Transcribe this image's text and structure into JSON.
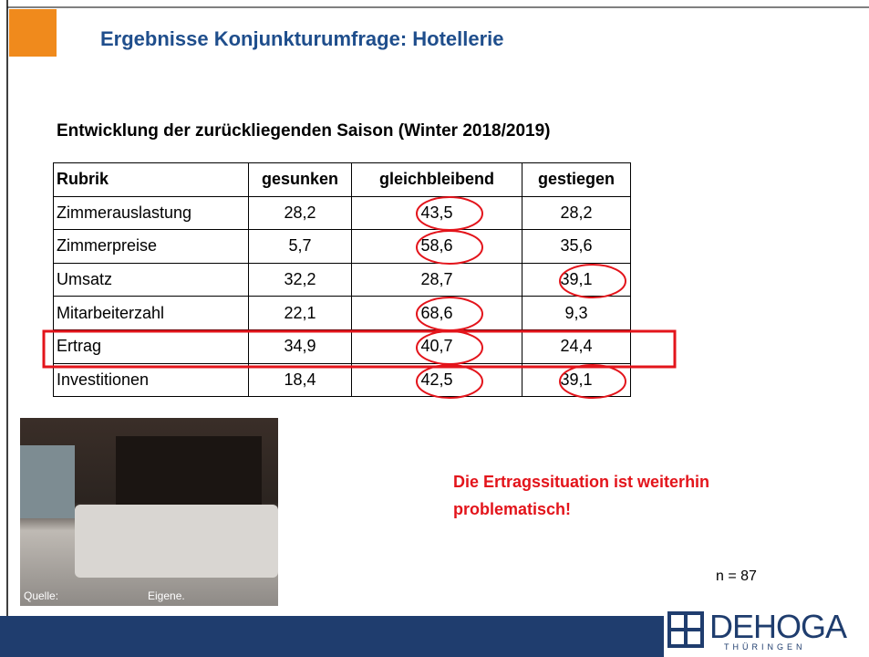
{
  "header": {
    "title": "Ergebnisse Konjunkturumfrage: Hotellerie"
  },
  "subtitle": "Entwicklung der zurückliegenden Saison (Winter 2018/2019)",
  "table": {
    "columns": [
      "Rubrik",
      "gesunken",
      "gleichbleibend",
      "gestiegen"
    ],
    "rows": [
      [
        "Zimmerauslastung",
        "28,2",
        "43,5",
        "28,2"
      ],
      [
        "Zimmerpreise",
        "5,7",
        "58,6",
        "35,6"
      ],
      [
        "Umsatz",
        "32,2",
        "28,7",
        "39,1"
      ],
      [
        "Mitarbeiterzahl",
        "22,1",
        "68,6",
        "9,3"
      ],
      [
        "Ertrag",
        "34,9",
        "40,7",
        "24,4"
      ],
      [
        "Investitionen",
        "18,4",
        "42,5",
        "39,1"
      ]
    ]
  },
  "note": "Die Ertragssituation ist weiterhin problematisch!",
  "photo": {
    "source_label": "Quelle:",
    "source": "Eigene."
  },
  "sample": "n = 87",
  "logo": {
    "name": "DEHOGA",
    "region": "THÜRINGEN"
  }
}
